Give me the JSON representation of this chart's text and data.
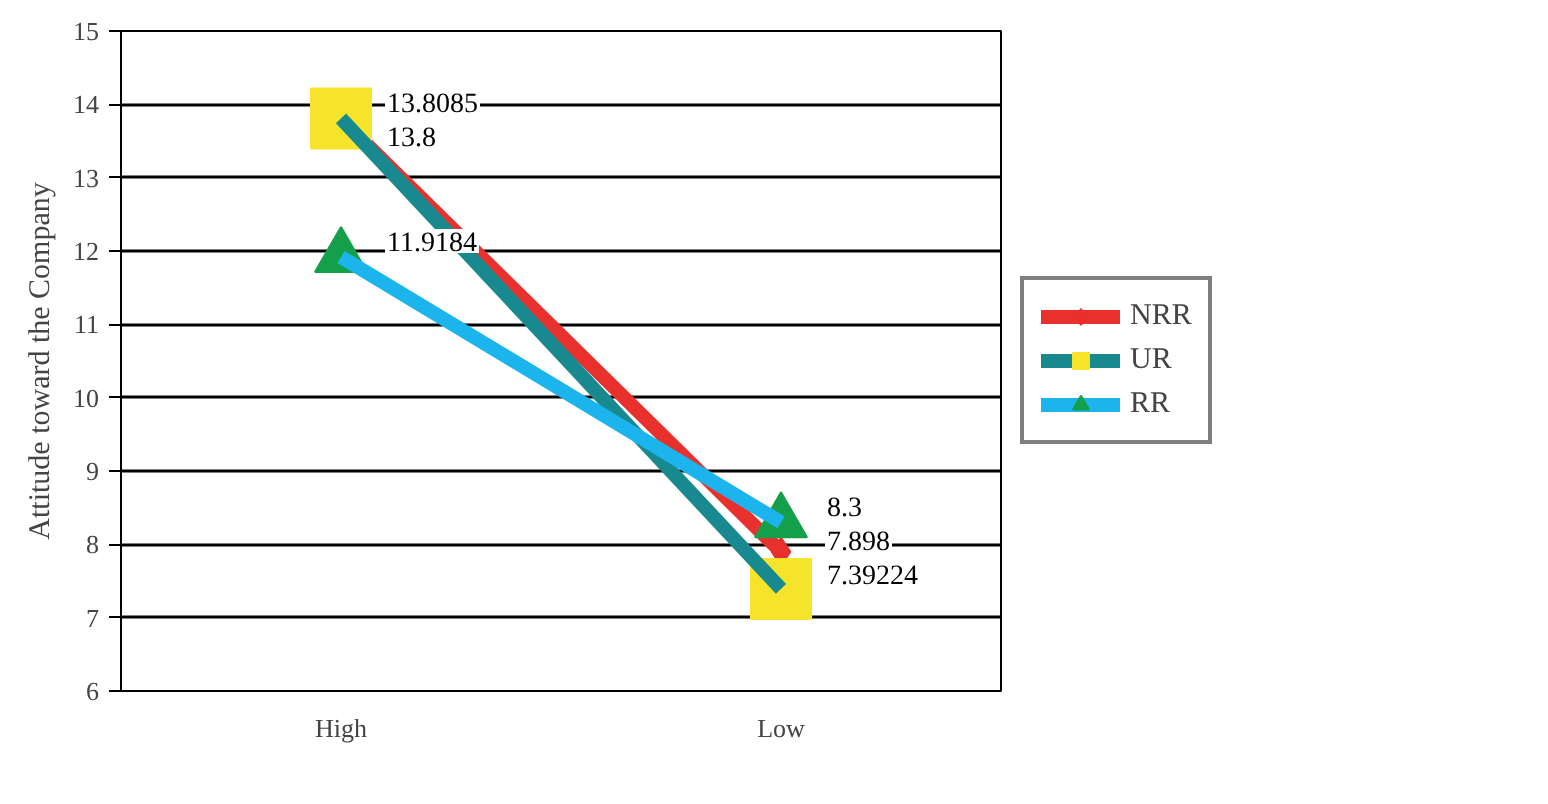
{
  "chart_data": {
    "type": "line",
    "ylabel": "Attitude toward the Company",
    "categories": [
      "High",
      "Low"
    ],
    "ylim": [
      6,
      15
    ],
    "yticks": [
      6,
      7,
      8,
      9,
      10,
      11,
      12,
      13,
      14,
      15
    ],
    "grid": "y",
    "legend": "right",
    "data_labels": true,
    "series": [
      {
        "name": "NRR",
        "color": "#e8302c",
        "colors": [
          "#e8302c",
          "#e8302c"
        ],
        "marker": "diamond",
        "values": [
          13.8,
          7.898
        ]
      },
      {
        "name": "UR",
        "color": "#17898f",
        "colors": [
          "#f5e42a",
          "#f5e42a"
        ],
        "marker": "square",
        "values": [
          13.8085,
          7.39224
        ]
      },
      {
        "name": "RR",
        "color": "#1cb4ec",
        "colors": [
          "#14a04a",
          "#14a04a"
        ],
        "marker": "triangle",
        "values": [
          11.9184,
          8.3
        ]
      }
    ]
  }
}
